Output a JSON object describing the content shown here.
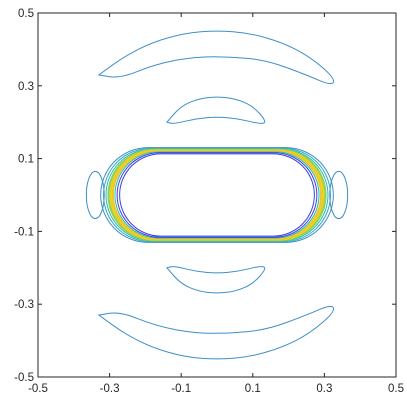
{
  "chart_data": {
    "type": "contour",
    "title": "",
    "xlabel": "",
    "ylabel": "",
    "xlim": [
      -0.5,
      0.5
    ],
    "ylim": [
      -0.5,
      0.5
    ],
    "x_ticks": [
      -0.5,
      -0.3,
      -0.1,
      0.1,
      0.3,
      0.5
    ],
    "x_tick_labels": [
      "-0.5",
      "-0.3",
      "-0.1",
      "0.1",
      "0.3",
      "0.5"
    ],
    "y_ticks": [
      0.5,
      0.3,
      0.1,
      -0.1,
      -0.3,
      -0.5
    ],
    "y_tick_labels": [
      "0.5",
      "0.3",
      "0.1",
      "-0.1",
      "-0.3",
      "-0.5"
    ],
    "grid": false,
    "box": true,
    "colors": {
      "low": "#3d8fc7",
      "mid_blue": "#3b3fe0",
      "teal": "#1fbfb5",
      "green": "#8fcf5e",
      "yellow": "#e8d21f",
      "axes": "#262626"
    },
    "outer_arcs": [
      {
        "name": "upper-outer-arc",
        "x": [
          -0.33,
          -0.26,
          -0.18,
          -0.09,
          0.0,
          0.09,
          0.18,
          0.26,
          0.33,
          0.32,
          0.25,
          0.14,
          0.04,
          -0.06,
          -0.17,
          -0.27,
          -0.33
        ],
        "y": [
          0.33,
          0.38,
          0.42,
          0.445,
          0.452,
          0.445,
          0.42,
          0.38,
          0.32,
          0.3,
          0.33,
          0.37,
          0.38,
          0.38,
          0.36,
          0.32,
          0.33
        ]
      },
      {
        "name": "lower-outer-arc",
        "x": [
          -0.33,
          -0.26,
          -0.18,
          -0.09,
          0.0,
          0.09,
          0.18,
          0.26,
          0.33,
          0.32,
          0.25,
          0.14,
          0.04,
          -0.06,
          -0.17,
          -0.27,
          -0.33
        ],
        "y": [
          -0.33,
          -0.38,
          -0.42,
          -0.445,
          -0.452,
          -0.445,
          -0.42,
          -0.38,
          -0.32,
          -0.3,
          -0.33,
          -0.37,
          -0.38,
          -0.38,
          -0.36,
          -0.32,
          -0.33
        ]
      }
    ],
    "inner_arcs": [
      {
        "name": "upper-inner-arc",
        "x": [
          -0.14,
          -0.1,
          -0.05,
          0.0,
          0.05,
          0.1,
          0.14,
          0.12,
          0.06,
          0.0,
          -0.06,
          -0.12,
          -0.14
        ],
        "y": [
          0.2,
          0.245,
          0.265,
          0.27,
          0.265,
          0.245,
          0.2,
          0.195,
          0.21,
          0.215,
          0.21,
          0.195,
          0.2
        ]
      },
      {
        "name": "lower-inner-arc",
        "x": [
          -0.14,
          -0.1,
          -0.05,
          0.0,
          0.05,
          0.1,
          0.14,
          0.12,
          0.06,
          0.0,
          -0.06,
          -0.12,
          -0.14
        ],
        "y": [
          -0.2,
          -0.245,
          -0.265,
          -0.27,
          -0.265,
          -0.245,
          -0.2,
          -0.195,
          -0.21,
          -0.215,
          -0.21,
          -0.195,
          -0.2
        ]
      }
    ],
    "ring_levels": [
      {
        "level": 1,
        "a": 0.325,
        "b": 0.13,
        "color": "#3d8fc7"
      },
      {
        "level": 2,
        "a": 0.317,
        "b": 0.128,
        "color": "#2fa5c9"
      },
      {
        "level": 3,
        "a": 0.31,
        "b": 0.126,
        "color": "#1fbfb5"
      },
      {
        "level": 4,
        "a": 0.303,
        "b": 0.124,
        "color": "#8fcf5e"
      },
      {
        "level": 5,
        "a": 0.297,
        "b": 0.122,
        "color": "#e8d21f"
      },
      {
        "level": 6,
        "a": 0.291,
        "b": 0.12,
        "color": "#f0c72a"
      },
      {
        "level": 7,
        "a": 0.285,
        "b": 0.118,
        "color": "#1fbfb5"
      },
      {
        "level": 8,
        "a": 0.279,
        "b": 0.116,
        "color": "#3b3fe0"
      },
      {
        "level": 9,
        "a": 0.272,
        "b": 0.113,
        "color": "#3b3fe0"
      }
    ],
    "side_lobes": [
      {
        "name": "left-side-lobe",
        "cx": -0.34,
        "cy": 0.0,
        "rx": 0.025,
        "ry": 0.065
      },
      {
        "name": "right-side-lobe",
        "cx": 0.34,
        "cy": 0.0,
        "rx": 0.025,
        "ry": 0.065
      }
    ]
  }
}
